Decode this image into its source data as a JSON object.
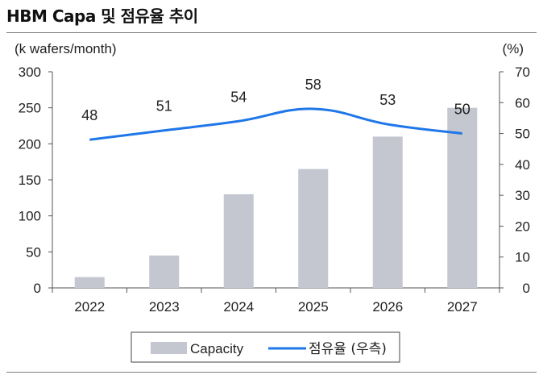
{
  "title": "HBM Capa 및 점유율 추이",
  "chart_data": {
    "type": "bar+line",
    "categories": [
      "2022",
      "2023",
      "2024",
      "2025",
      "2026",
      "2027"
    ],
    "series": [
      {
        "name": "Capacity",
        "type": "bar",
        "axis": "left",
        "color": "#c4c6d0",
        "values": [
          15,
          45,
          130,
          165,
          210,
          250
        ]
      },
      {
        "name": "점유율 (우측)",
        "type": "line",
        "axis": "right",
        "color": "#1f77e8",
        "values": [
          48,
          51,
          54,
          58,
          53,
          50
        ]
      }
    ],
    "y_left": {
      "label": "(k wafers/month)",
      "min": 0,
      "max": 300,
      "ticks": [
        0,
        50,
        100,
        150,
        200,
        250,
        300
      ]
    },
    "y_right": {
      "label": "(%)",
      "min": 0,
      "max": 70,
      "ticks": [
        0,
        10,
        20,
        30,
        40,
        50,
        60,
        70
      ]
    },
    "legend": [
      "Capacity",
      "점유율 (우측)"
    ],
    "legend_position": "bottom"
  }
}
